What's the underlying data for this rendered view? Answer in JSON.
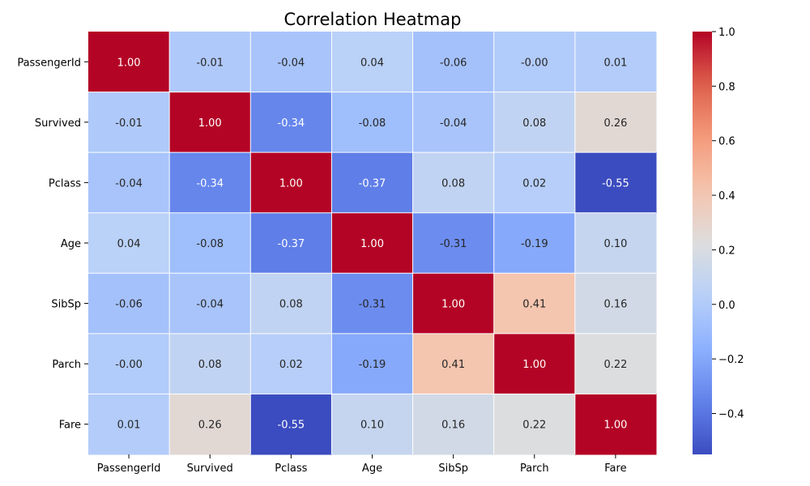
{
  "chart_data": {
    "type": "heatmap",
    "title": "Correlation Heatmap",
    "xlabel": "",
    "ylabel": "",
    "labels": [
      "PassengerId",
      "Survived",
      "Pclass",
      "Age",
      "SibSp",
      "Parch",
      "Fare"
    ],
    "matrix": [
      [
        1.0,
        -0.01,
        -0.04,
        0.04,
        -0.06,
        -0.0,
        0.01
      ],
      [
        -0.01,
        1.0,
        -0.34,
        -0.08,
        -0.04,
        0.08,
        0.26
      ],
      [
        -0.04,
        -0.34,
        1.0,
        -0.37,
        0.08,
        0.02,
        -0.55
      ],
      [
        0.04,
        -0.08,
        -0.37,
        1.0,
        -0.31,
        -0.19,
        0.1
      ],
      [
        -0.06,
        -0.04,
        0.08,
        -0.31,
        1.0,
        0.41,
        0.16
      ],
      [
        -0.0,
        0.08,
        0.02,
        -0.19,
        0.41,
        1.0,
        0.22
      ],
      [
        0.01,
        0.26,
        -0.55,
        0.1,
        0.16,
        0.22,
        1.0
      ]
    ],
    "value_format": "0.00",
    "colormap": "coolwarm",
    "vmin": -0.55,
    "vmax": 1.0,
    "colorbar": {
      "ticks": [
        -0.4,
        -0.2,
        0.0,
        0.2,
        0.4,
        0.6,
        0.8,
        1.0
      ],
      "tick_labels": [
        "−0.4",
        "−0.2",
        "0.0",
        "0.2",
        "0.4",
        "0.6",
        "0.8",
        "1.0"
      ],
      "placement": "right"
    },
    "grid": true,
    "gridline_color": "#ffffff"
  }
}
